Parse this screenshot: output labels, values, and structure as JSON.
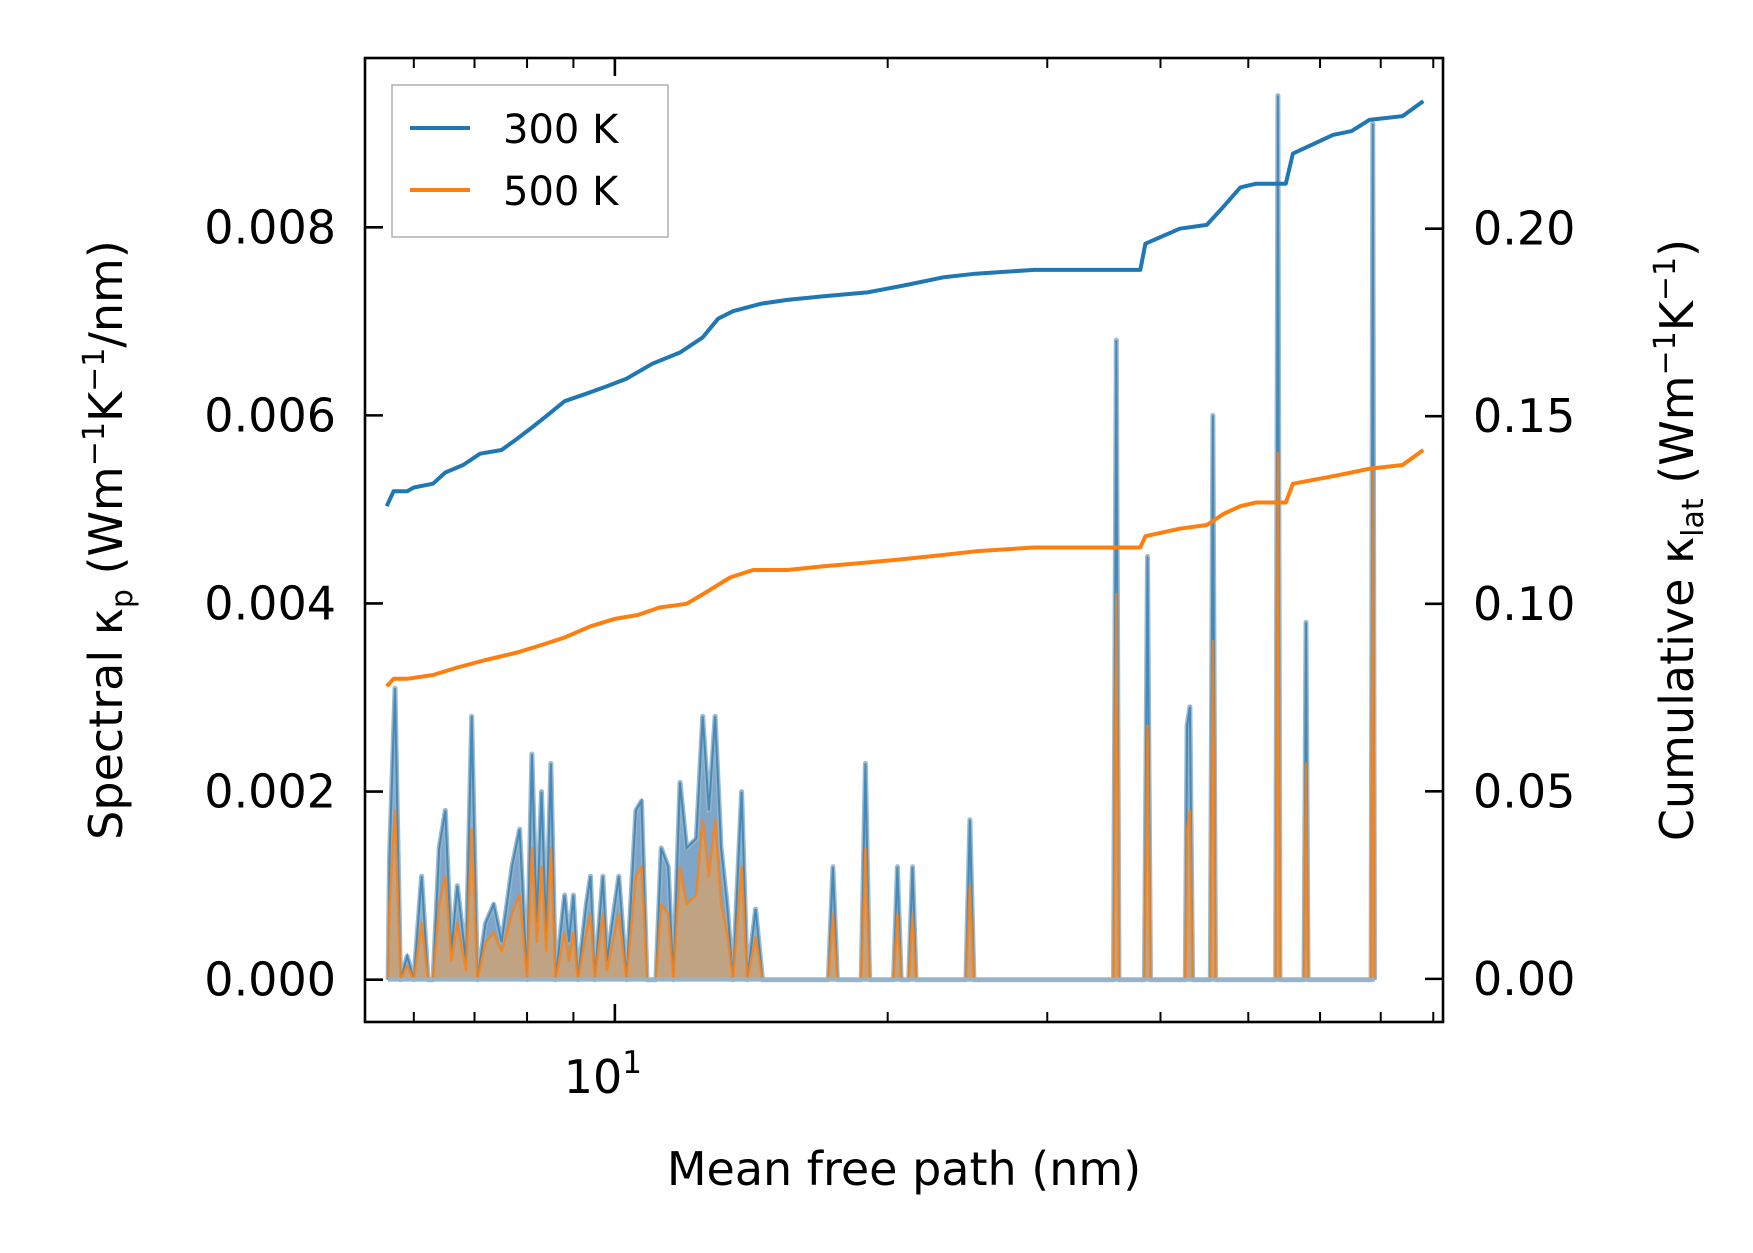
{
  "chart_data": {
    "type": "line",
    "xlabel": "Mean free path (nm)",
    "x_scale": "log",
    "xlim": [
      5.3,
      82
    ],
    "x_major_tick_labels": [
      {
        "value": 10,
        "base": "10",
        "exponent": "1"
      }
    ],
    "x_minor_ticks": [
      6,
      7,
      8,
      9,
      20,
      30,
      40,
      50,
      60,
      70,
      80
    ],
    "ylabel_left": {
      "text": "Spectral κ",
      "sub": "p",
      "unit_open": " (Wm",
      "sup1": "−1",
      "mid": "K",
      "sup2": "−1",
      "unit_close": "/nm)"
    },
    "ylabel_right": {
      "text": "Cumulative κ",
      "sub": "lat",
      "unit_open": " (Wm",
      "sup1": "−1",
      "mid": "K",
      "sup2": "−1",
      "unit_close": ")"
    },
    "ylim_left": [
      -0.00045,
      0.0098
    ],
    "yticks_left": [
      "0.000",
      "0.002",
      "0.004",
      "0.006",
      "0.008"
    ],
    "ylim_right": [
      -0.0115,
      0.2455
    ],
    "yticks_right": [
      "0.00",
      "0.05",
      "0.10",
      "0.15",
      "0.20"
    ],
    "legend": {
      "placement": "top-left",
      "entries": [
        "300 K",
        "500 K"
      ]
    },
    "colors": {
      "300K": "#1f77b4",
      "500K": "#ff7f0e",
      "fill_300K": "#7fa6c9",
      "fill_500K": "#c4a27e",
      "fill_edge": "#96b3c7"
    },
    "cumulative_series": [
      {
        "name": "300 K",
        "axis": "right",
        "points": [
          [
            5.6,
            0.126
          ],
          [
            5.7,
            0.13
          ],
          [
            5.9,
            0.13
          ],
          [
            6.0,
            0.131
          ],
          [
            6.3,
            0.132
          ],
          [
            6.5,
            0.135
          ],
          [
            6.8,
            0.137
          ],
          [
            7.1,
            0.14
          ],
          [
            7.5,
            0.141
          ],
          [
            7.8,
            0.144
          ],
          [
            8.1,
            0.147
          ],
          [
            8.4,
            0.15
          ],
          [
            8.8,
            0.154
          ],
          [
            9.3,
            0.156
          ],
          [
            9.8,
            0.158
          ],
          [
            10.3,
            0.16
          ],
          [
            11.0,
            0.164
          ],
          [
            11.8,
            0.167
          ],
          [
            12.5,
            0.171
          ],
          [
            13.0,
            0.176
          ],
          [
            13.5,
            0.178
          ],
          [
            14.5,
            0.18
          ],
          [
            15.5,
            0.181
          ],
          [
            17.0,
            0.182
          ],
          [
            19.0,
            0.183
          ],
          [
            21.0,
            0.185
          ],
          [
            23.0,
            0.187
          ],
          [
            25.0,
            0.188
          ],
          [
            29.0,
            0.189
          ],
          [
            38.0,
            0.189
          ],
          [
            38.5,
            0.196
          ],
          [
            42.0,
            0.2
          ],
          [
            45.0,
            0.201
          ],
          [
            47.0,
            0.206
          ],
          [
            49.0,
            0.211
          ],
          [
            51.0,
            0.212
          ],
          [
            55.0,
            0.212
          ],
          [
            56.0,
            0.22
          ],
          [
            62.0,
            0.225
          ],
          [
            65.0,
            0.226
          ],
          [
            68.0,
            0.229
          ],
          [
            74.0,
            0.23
          ],
          [
            78.0,
            0.234
          ]
        ]
      },
      {
        "name": "500 K",
        "axis": "right",
        "points": [
          [
            5.6,
            0.078
          ],
          [
            5.7,
            0.08
          ],
          [
            5.9,
            0.08
          ],
          [
            6.3,
            0.081
          ],
          [
            6.7,
            0.083
          ],
          [
            7.2,
            0.085
          ],
          [
            7.8,
            0.087
          ],
          [
            8.3,
            0.089
          ],
          [
            8.8,
            0.091
          ],
          [
            9.4,
            0.094
          ],
          [
            10.0,
            0.096
          ],
          [
            10.6,
            0.097
          ],
          [
            11.2,
            0.099
          ],
          [
            12.0,
            0.1
          ],
          [
            12.6,
            0.103
          ],
          [
            13.4,
            0.107
          ],
          [
            14.2,
            0.109
          ],
          [
            15.5,
            0.109
          ],
          [
            17.0,
            0.11
          ],
          [
            19.0,
            0.111
          ],
          [
            21.0,
            0.112
          ],
          [
            23.0,
            0.113
          ],
          [
            25.0,
            0.114
          ],
          [
            29.0,
            0.115
          ],
          [
            38.0,
            0.115
          ],
          [
            38.5,
            0.118
          ],
          [
            42.0,
            0.12
          ],
          [
            45.0,
            0.121
          ],
          [
            47.0,
            0.124
          ],
          [
            49.0,
            0.126
          ],
          [
            51.0,
            0.127
          ],
          [
            55.0,
            0.127
          ],
          [
            56.0,
            0.132
          ],
          [
            62.0,
            0.134
          ],
          [
            65.0,
            0.135
          ],
          [
            68.0,
            0.136
          ],
          [
            74.0,
            0.137
          ],
          [
            78.0,
            0.141
          ]
        ]
      }
    ],
    "spectral_series": [
      {
        "name": "300 K",
        "axis": "left",
        "points": [
          [
            5.62,
            0.0
          ],
          [
            5.64,
            0.0013
          ],
          [
            5.72,
            0.0031
          ],
          [
            5.8,
            0.0
          ],
          [
            5.9,
            0.00025
          ],
          [
            6.0,
            0.0
          ],
          [
            6.12,
            0.0011
          ],
          [
            6.22,
            0.0
          ],
          [
            6.3,
            0.0
          ],
          [
            6.4,
            0.0014
          ],
          [
            6.5,
            0.0018
          ],
          [
            6.6,
            0.0003
          ],
          [
            6.7,
            0.001
          ],
          [
            6.85,
            0.0002
          ],
          [
            6.95,
            0.0028
          ],
          [
            7.05,
            0.0
          ],
          [
            7.2,
            0.0006
          ],
          [
            7.35,
            0.0008
          ],
          [
            7.5,
            0.0004
          ],
          [
            7.6,
            0.0008
          ],
          [
            7.7,
            0.0012
          ],
          [
            7.85,
            0.0016
          ],
          [
            8.0,
            0.0
          ],
          [
            8.1,
            0.0024
          ],
          [
            8.2,
            0.0006
          ],
          [
            8.3,
            0.002
          ],
          [
            8.4,
            0.0005
          ],
          [
            8.5,
            0.0023
          ],
          [
            8.6,
            0.0
          ],
          [
            8.8,
            0.0009
          ],
          [
            8.9,
            0.0004
          ],
          [
            9.0,
            0.0009
          ],
          [
            9.1,
            0.0
          ],
          [
            9.3,
            0.0008
          ],
          [
            9.4,
            0.0011
          ],
          [
            9.5,
            0.0
          ],
          [
            9.7,
            0.0011
          ],
          [
            9.8,
            0.0002
          ],
          [
            10.1,
            0.0011
          ],
          [
            10.3,
            0.0
          ],
          [
            10.55,
            0.0018
          ],
          [
            10.7,
            0.0019
          ],
          [
            10.85,
            0.0
          ],
          [
            11.1,
            0.0
          ],
          [
            11.25,
            0.0014
          ],
          [
            11.45,
            0.0012
          ],
          [
            11.6,
            0.0
          ],
          [
            11.8,
            0.0021
          ],
          [
            12.0,
            0.0014
          ],
          [
            12.3,
            0.0015
          ],
          [
            12.5,
            0.0028
          ],
          [
            12.7,
            0.0018
          ],
          [
            12.9,
            0.0028
          ],
          [
            13.1,
            0.0014
          ],
          [
            13.3,
            0.0008
          ],
          [
            13.5,
            0.0
          ],
          [
            13.8,
            0.002
          ],
          [
            14.0,
            0.0
          ],
          [
            14.3,
            0.00075
          ],
          [
            14.55,
            0.0
          ],
          [
            17.2,
            0.0
          ],
          [
            17.4,
            0.0012
          ],
          [
            17.6,
            0.0
          ],
          [
            18.7,
            0.0
          ],
          [
            18.9,
            0.0023
          ],
          [
            19.1,
            0.0
          ],
          [
            20.3,
            0.0
          ],
          [
            20.5,
            0.0012
          ],
          [
            20.7,
            0.0
          ],
          [
            21.1,
            0.0
          ],
          [
            21.3,
            0.0012
          ],
          [
            21.5,
            0.0
          ],
          [
            24.4,
            0.0
          ],
          [
            24.65,
            0.0017
          ],
          [
            24.9,
            0.0
          ],
          [
            35.5,
            0.0
          ],
          [
            35.75,
            0.0068
          ],
          [
            36.0,
            0.0
          ],
          [
            38.4,
            0.0
          ],
          [
            38.7,
            0.0045
          ],
          [
            39.0,
            0.0
          ],
          [
            42.6,
            0.0
          ],
          [
            42.8,
            0.0027
          ],
          [
            43.1,
            0.0029
          ],
          [
            43.4,
            0.0
          ],
          [
            45.4,
            0.0
          ],
          [
            45.7,
            0.006
          ],
          [
            46.0,
            0.0
          ],
          [
            53.6,
            0.0
          ],
          [
            53.9,
            0.0094
          ],
          [
            54.2,
            0.0
          ],
          [
            57.6,
            0.0
          ],
          [
            57.9,
            0.0038
          ],
          [
            58.2,
            0.0
          ],
          [
            68.3,
            0.0
          ],
          [
            68.6,
            0.0091
          ],
          [
            68.9,
            0.0
          ]
        ]
      },
      {
        "name": "500 K",
        "axis": "left",
        "points": [
          [
            5.62,
            0.0
          ],
          [
            5.64,
            0.0008
          ],
          [
            5.72,
            0.0018
          ],
          [
            5.8,
            0.0
          ],
          [
            5.9,
            0.00015
          ],
          [
            6.0,
            0.0
          ],
          [
            6.12,
            0.0006
          ],
          [
            6.22,
            0.0
          ],
          [
            6.3,
            0.0
          ],
          [
            6.4,
            0.0008
          ],
          [
            6.5,
            0.0011
          ],
          [
            6.6,
            0.0002
          ],
          [
            6.7,
            0.0006
          ],
          [
            6.85,
            0.0001
          ],
          [
            6.95,
            0.0016
          ],
          [
            7.05,
            0.0
          ],
          [
            7.2,
            0.0004
          ],
          [
            7.35,
            0.0005
          ],
          [
            7.5,
            0.0003
          ],
          [
            7.6,
            0.0005
          ],
          [
            7.7,
            0.0007
          ],
          [
            7.85,
            0.0009
          ],
          [
            8.0,
            0.0
          ],
          [
            8.1,
            0.0014
          ],
          [
            8.2,
            0.0004
          ],
          [
            8.3,
            0.0012
          ],
          [
            8.4,
            0.0003
          ],
          [
            8.5,
            0.0014
          ],
          [
            8.6,
            0.0
          ],
          [
            8.8,
            0.0005
          ],
          [
            8.9,
            0.0002
          ],
          [
            9.0,
            0.0005
          ],
          [
            9.1,
            0.0
          ],
          [
            9.3,
            0.0005
          ],
          [
            9.4,
            0.0007
          ],
          [
            9.5,
            0.0
          ],
          [
            9.7,
            0.0007
          ],
          [
            9.8,
            0.0001
          ],
          [
            10.1,
            0.0007
          ],
          [
            10.3,
            0.0
          ],
          [
            10.55,
            0.0011
          ],
          [
            10.7,
            0.0012
          ],
          [
            10.85,
            0.0
          ],
          [
            11.1,
            0.0
          ],
          [
            11.25,
            0.0008
          ],
          [
            11.45,
            0.0007
          ],
          [
            11.6,
            0.0
          ],
          [
            11.8,
            0.0012
          ],
          [
            12.0,
            0.0008
          ],
          [
            12.3,
            0.0009
          ],
          [
            12.5,
            0.0017
          ],
          [
            12.7,
            0.0011
          ],
          [
            12.9,
            0.0017
          ],
          [
            13.1,
            0.0008
          ],
          [
            13.3,
            0.0005
          ],
          [
            13.5,
            0.0
          ],
          [
            13.8,
            0.0012
          ],
          [
            14.0,
            0.0
          ],
          [
            14.3,
            0.00045
          ],
          [
            14.55,
            0.0
          ],
          [
            17.2,
            0.0
          ],
          [
            17.4,
            0.0007
          ],
          [
            17.6,
            0.0
          ],
          [
            18.7,
            0.0
          ],
          [
            18.9,
            0.0014
          ],
          [
            19.1,
            0.0
          ],
          [
            20.3,
            0.0
          ],
          [
            20.5,
            0.0007
          ],
          [
            20.7,
            0.0
          ],
          [
            21.1,
            0.0
          ],
          [
            21.3,
            0.0007
          ],
          [
            21.5,
            0.0
          ],
          [
            24.4,
            0.0
          ],
          [
            24.65,
            0.001
          ],
          [
            24.9,
            0.0
          ],
          [
            35.5,
            0.0
          ],
          [
            35.75,
            0.0041
          ],
          [
            36.0,
            0.0
          ],
          [
            38.4,
            0.0
          ],
          [
            38.7,
            0.0027
          ],
          [
            39.0,
            0.0
          ],
          [
            42.6,
            0.0
          ],
          [
            42.8,
            0.0016
          ],
          [
            43.1,
            0.0018
          ],
          [
            43.4,
            0.0
          ],
          [
            45.4,
            0.0
          ],
          [
            45.7,
            0.0036
          ],
          [
            46.0,
            0.0
          ],
          [
            53.6,
            0.0
          ],
          [
            53.9,
            0.0056
          ],
          [
            54.2,
            0.0
          ],
          [
            57.6,
            0.0
          ],
          [
            57.9,
            0.0023
          ],
          [
            58.2,
            0.0
          ],
          [
            68.3,
            0.0
          ],
          [
            68.6,
            0.0054
          ],
          [
            68.9,
            0.0
          ]
        ]
      }
    ]
  }
}
